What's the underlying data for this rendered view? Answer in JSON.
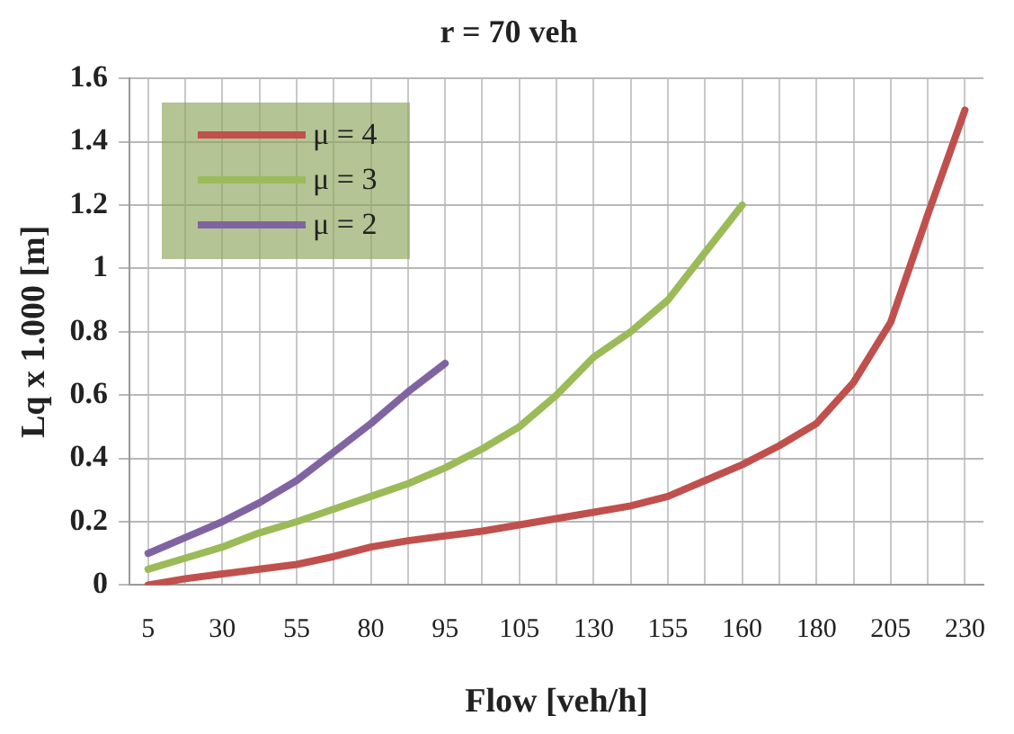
{
  "chart_data": {
    "type": "line",
    "title": "r = 70 veh",
    "xlabel": "Flow [veh/h]",
    "ylabel": "Lq x 1.000 [m]",
    "categories": [
      "5",
      null,
      "30",
      null,
      "55",
      null,
      "80",
      null,
      "95",
      null,
      "105",
      null,
      "130",
      null,
      "155",
      null,
      "160",
      null,
      "180",
      null,
      "205",
      null,
      "230"
    ],
    "series": [
      {
        "name": "μ = 4",
        "color": "#c0504d",
        "values": [
          0,
          0.02,
          0.035,
          0.05,
          0.065,
          0.09,
          0.12,
          0.14,
          0.155,
          0.17,
          0.19,
          0.21,
          0.23,
          0.25,
          0.28,
          0.33,
          0.38,
          0.44,
          0.51,
          0.64,
          0.83,
          1.17,
          1.5
        ]
      },
      {
        "name": "μ = 3",
        "color": "#9bbb59",
        "values": [
          0.05,
          0.085,
          0.12,
          0.165,
          0.2,
          0.24,
          0.28,
          0.32,
          0.37,
          0.43,
          0.5,
          0.6,
          0.72,
          0.8,
          0.9,
          1.05,
          1.2,
          null,
          null,
          null,
          null,
          null,
          null
        ]
      },
      {
        "name": "μ = 2",
        "color": "#8064a2",
        "values": [
          0.1,
          0.15,
          0.2,
          0.26,
          0.33,
          0.42,
          0.51,
          0.61,
          0.7,
          null,
          null,
          null,
          null,
          null,
          null,
          null,
          null,
          null,
          null,
          null,
          null,
          null,
          null
        ]
      }
    ],
    "ylim": [
      0,
      1.6
    ],
    "yticks": [
      0,
      0.2,
      0.4,
      0.6,
      0.8,
      1,
      1.2,
      1.4,
      1.6
    ],
    "grid": true,
    "legend": "top left",
    "marker": "none",
    "line_style": "solid"
  }
}
